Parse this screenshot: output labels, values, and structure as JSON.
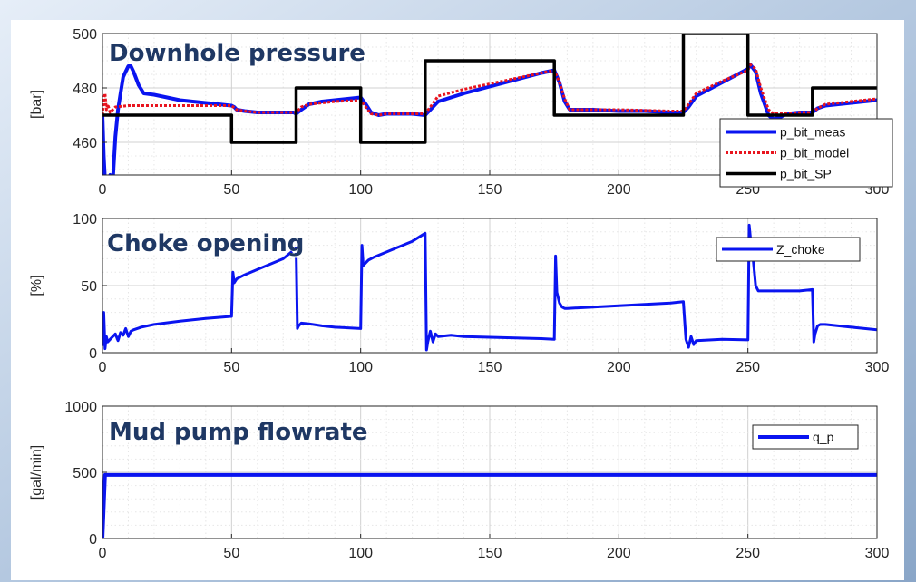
{
  "colors": {
    "bg_light": "#dfe8f4",
    "bg_dark": "#8aa6c8",
    "title": "#1f3864",
    "meas": "#0a14f0",
    "model": "#e8141e",
    "sp": "#000000",
    "grid": "#c8c8c8"
  },
  "chart_data": [
    {
      "type": "line",
      "title": "Downhole pressure",
      "ylabel": "[bar]",
      "xlim": [
        0,
        300
      ],
      "ylim": [
        448,
        500
      ],
      "xticks": [
        0,
        50,
        100,
        150,
        200,
        250,
        300
      ],
      "yticks": [
        460,
        480,
        500
      ],
      "grid": true,
      "legend": "bottom-right",
      "series": [
        {
          "name": "p_bit_meas",
          "style": "solid",
          "width": 4,
          "color": "#0a14f0",
          "x": [
            0,
            0.5,
            1,
            2,
            3,
            4,
            5,
            6,
            7,
            8,
            9,
            10,
            11,
            12,
            14,
            16,
            20,
            25,
            30,
            35,
            40,
            45,
            50,
            51,
            52,
            55,
            60,
            65,
            70,
            74,
            75,
            77,
            80,
            85,
            90,
            95,
            100,
            102,
            104,
            107,
            110,
            115,
            120,
            125,
            127,
            130,
            140,
            150,
            160,
            170,
            175,
            177,
            179,
            181,
            185,
            190,
            200,
            210,
            220,
            225,
            227,
            230,
            240,
            250,
            251,
            253,
            255,
            258,
            260,
            263,
            265,
            270,
            275,
            277,
            280,
            290,
            300
          ],
          "y": [
            470,
            455,
            446,
            446,
            448,
            446,
            462,
            472,
            478,
            484,
            486,
            488,
            488,
            486,
            481,
            478,
            477.5,
            476.5,
            475.5,
            475,
            474.5,
            474,
            473.5,
            473,
            472,
            471.5,
            471,
            471,
            471,
            471,
            470.5,
            472,
            474,
            475,
            475.5,
            476,
            476.5,
            474,
            471,
            470,
            470.5,
            470.5,
            470.5,
            470,
            472,
            475,
            478,
            480.5,
            483,
            485.5,
            486.5,
            482,
            475,
            472,
            472,
            472,
            471.5,
            471.5,
            471,
            471,
            473,
            477,
            482,
            487,
            488.5,
            486,
            478,
            470,
            468.5,
            469.5,
            470.5,
            471,
            471,
            472.5,
            473.5,
            474.5,
            475.5
          ]
        },
        {
          "name": "p_bit_model",
          "style": "dotted",
          "width": 3,
          "color": "#e8141e",
          "x": [
            0,
            0.5,
            1,
            1.5,
            2,
            3,
            5,
            10,
            20,
            30,
            40,
            50,
            52,
            55,
            60,
            70,
            75,
            77,
            80,
            90,
            100,
            102,
            104,
            107,
            110,
            120,
            125,
            127,
            130,
            140,
            150,
            160,
            170,
            175,
            177,
            179,
            181,
            185,
            200,
            220,
            225,
            227,
            230,
            240,
            250,
            251,
            253,
            255,
            258,
            260,
            270,
            275,
            277,
            280,
            290,
            300
          ],
          "y": [
            470,
            476,
            478,
            472,
            474,
            471,
            473,
            473.5,
            473.5,
            473.5,
            473.5,
            473.5,
            472,
            471.5,
            471,
            471,
            471,
            473,
            474,
            475,
            475.5,
            473,
            470.5,
            470,
            470.5,
            470.5,
            470.5,
            473,
            477,
            479.5,
            481.5,
            483.5,
            485.5,
            486.5,
            482,
            476,
            472,
            472,
            472,
            471.5,
            471.5,
            474,
            478,
            482.5,
            486.5,
            488.5,
            487,
            480,
            472,
            470.5,
            471,
            471,
            472.5,
            474,
            475,
            476
          ]
        },
        {
          "name": "p_bit_SP",
          "style": "solid",
          "width": 3.5,
          "color": "#000000",
          "x": [
            0,
            50,
            50,
            75,
            75,
            100,
            100,
            125,
            125,
            175,
            175,
            225,
            225,
            250,
            250,
            275,
            275,
            300
          ],
          "y": [
            470,
            470,
            460,
            460,
            480,
            480,
            460,
            460,
            490,
            490,
            470,
            470,
            500,
            500,
            470,
            470,
            480,
            480
          ]
        }
      ]
    },
    {
      "type": "line",
      "title": "Choke opening",
      "ylabel": "[%]",
      "xlim": [
        0,
        300
      ],
      "ylim": [
        0,
        100
      ],
      "xticks": [
        0,
        50,
        100,
        150,
        200,
        250,
        300
      ],
      "yticks": [
        0,
        50,
        100
      ],
      "grid": true,
      "legend": "top-right",
      "series": [
        {
          "name": "Z_choke",
          "style": "solid",
          "width": 3,
          "color": "#0a14f0",
          "x": [
            0,
            0.5,
            1,
            1.5,
            2,
            3,
            4,
            5,
            6,
            7,
            8,
            9,
            10,
            11,
            12,
            15,
            20,
            30,
            40,
            50,
            50.5,
            51,
            52,
            55,
            60,
            70,
            75,
            75.5,
            76,
            77,
            80,
            85,
            90,
            95,
            100,
            100.5,
            101,
            102,
            103,
            105,
            110,
            120,
            125,
            125.5,
            126,
            127,
            128,
            129,
            130,
            135,
            140,
            150,
            160,
            170,
            175,
            175.5,
            176,
            177,
            178,
            179,
            180,
            190,
            200,
            210,
            220,
            225,
            226,
            227,
            228,
            229,
            230,
            240,
            250,
            250.5,
            251,
            252,
            253,
            254,
            255,
            260,
            270,
            275,
            275.5,
            276,
            277,
            278,
            280,
            290,
            300
          ],
          "y": [
            5,
            30,
            3,
            12,
            8,
            10,
            12,
            14,
            9,
            15,
            13,
            18,
            12,
            16,
            17,
            19,
            21,
            23.5,
            25.5,
            27,
            60,
            52,
            55,
            58,
            62,
            70,
            78,
            18,
            20,
            22,
            21.5,
            20,
            19,
            18.5,
            18,
            80,
            65,
            67,
            69,
            71,
            75,
            83,
            89,
            2,
            8,
            16,
            8,
            14,
            12,
            13,
            12,
            11.5,
            11,
            10.5,
            10,
            72,
            45,
            37,
            34,
            33,
            33,
            34,
            35,
            36,
            37,
            38,
            10,
            4,
            12,
            6,
            9,
            10,
            9.5,
            95,
            85,
            70,
            50,
            46,
            46,
            46,
            46,
            47,
            8,
            14,
            20,
            21,
            21,
            19,
            17
          ]
        }
      ]
    },
    {
      "type": "line",
      "title": "Mud pump flowrate",
      "ylabel": "[gal/min]",
      "xlim": [
        0,
        300
      ],
      "ylim": [
        0,
        1000
      ],
      "xticks": [
        0,
        50,
        100,
        150,
        200,
        250,
        300
      ],
      "yticks": [
        0,
        500,
        1000
      ],
      "grid": true,
      "legend": "top-right",
      "series": [
        {
          "name": "q_p",
          "style": "solid",
          "width": 4,
          "color": "#0a14f0",
          "x": [
            0,
            1,
            300
          ],
          "y": [
            0,
            480,
            480
          ]
        }
      ]
    }
  ]
}
